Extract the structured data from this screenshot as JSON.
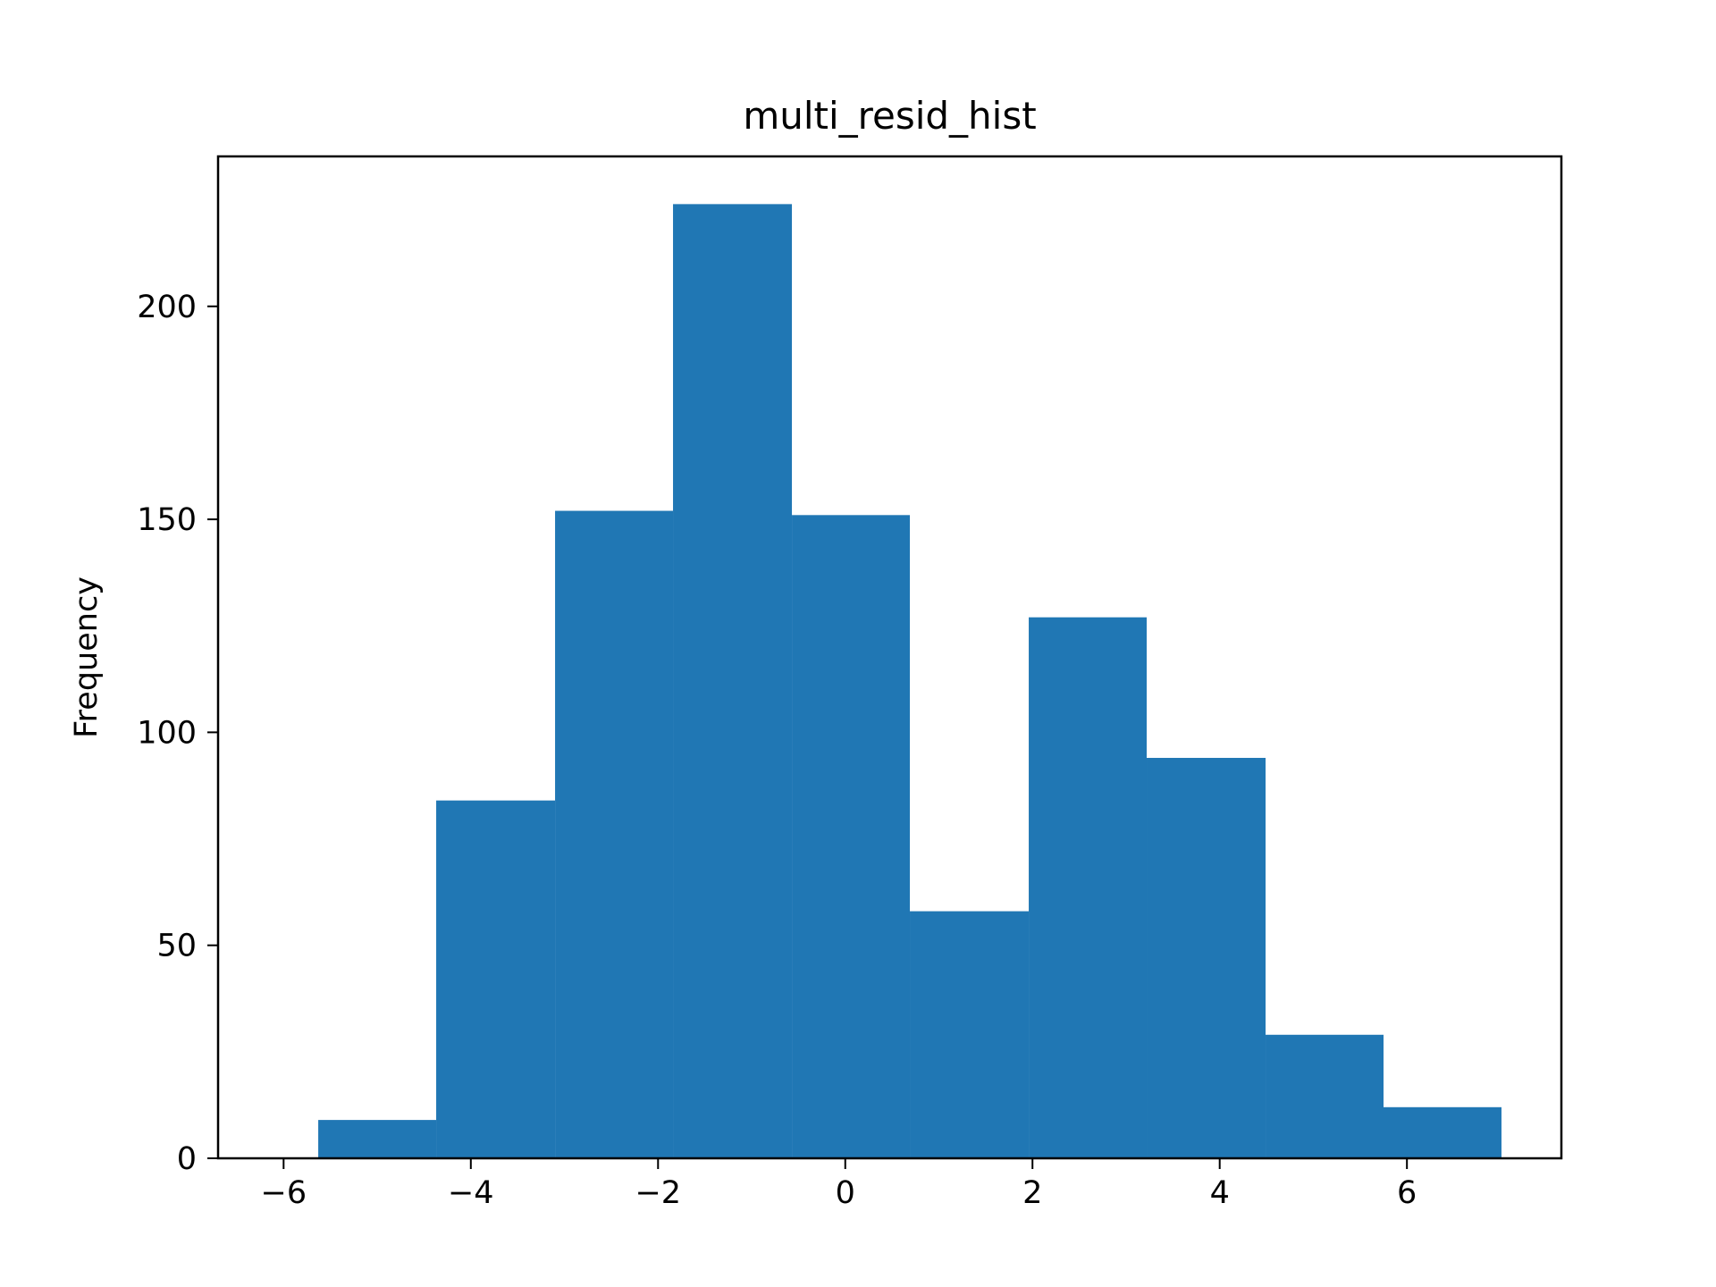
{
  "chart_data": {
    "type": "bar",
    "title": "multi_resid_hist",
    "xlabel": "",
    "ylabel": "Frequency",
    "bin_edges": [
      -5.63,
      -4.37,
      -3.1,
      -1.84,
      -0.57,
      0.69,
      1.96,
      3.22,
      4.49,
      5.75,
      7.01
    ],
    "values": [
      9,
      84,
      152,
      224,
      151,
      58,
      127,
      94,
      29,
      12
    ],
    "xlim": [
      -6.7,
      7.65
    ],
    "ylim": [
      0,
      235.2
    ],
    "xticks": [
      -6,
      -4,
      -2,
      0,
      2,
      4,
      6
    ],
    "xtick_labels": [
      "−6",
      "−4",
      "−2",
      "0",
      "2",
      "4",
      "6"
    ],
    "yticks": [
      0,
      50,
      100,
      150,
      200
    ],
    "ytick_labels": [
      "0",
      "50",
      "100",
      "150",
      "200"
    ],
    "bar_color": "#2077b4",
    "grid": false,
    "legend": false
  }
}
